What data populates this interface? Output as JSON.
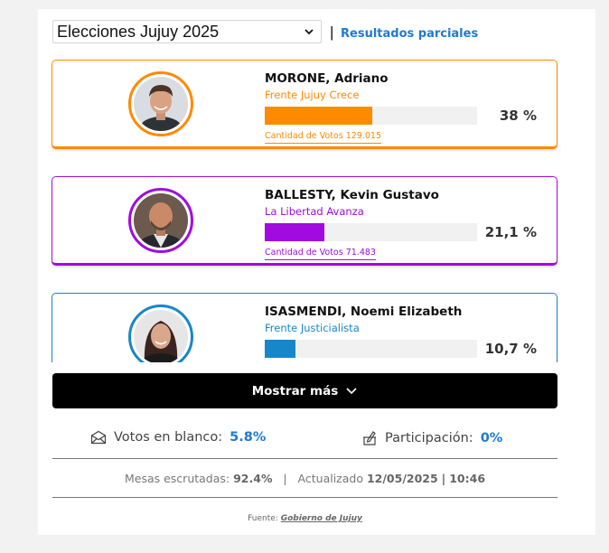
{
  "header": {
    "election_select": "Elecciones Jujuy 2025",
    "pipe": "|",
    "partial_label": "Resultados parciales"
  },
  "candidates": [
    {
      "name": "MORONE, Adriano",
      "party": "Frente Jujuy Crece",
      "percent_label": "38 %",
      "percent": 38,
      "votes_label": "Cantidad de Votos 129.015",
      "color": "#ff8a00"
    },
    {
      "name": "BALLESTY, Kevin Gustavo",
      "party": "La Libertad Avanza",
      "percent_label": "21,1 %",
      "percent": 21.1,
      "votes_label": "Cantidad de Votos 71.483",
      "color": "#a10be0"
    },
    {
      "name": "ISASMENDI, Noemi Elizabeth",
      "party": "Frente Justicialista",
      "percent_label": "10,7 %",
      "percent": 10.7,
      "color": "#1787c9"
    }
  ],
  "show_more": {
    "label": "Mostrar más",
    "icon": "chevron-down-icon"
  },
  "stats": {
    "blank_label": "Votos en blanco:",
    "blank_value": "5.8%",
    "blank_icon": "envelope-icon",
    "participation_label": "Participación:",
    "participation_value": "0%",
    "participation_icon": "ballot-pen-icon"
  },
  "tables": {
    "label": "Mesas escrutadas:",
    "value": "92.4%",
    "sep": "|",
    "updated_label": "Actualizado",
    "updated_date": "12/05/2025",
    "sep2": "|",
    "updated_time": "10:46"
  },
  "source": {
    "label": "Fuente:",
    "link": "Gobierno de Jujuy"
  },
  "colors": {
    "accent_blue": "#1d7ad6"
  }
}
